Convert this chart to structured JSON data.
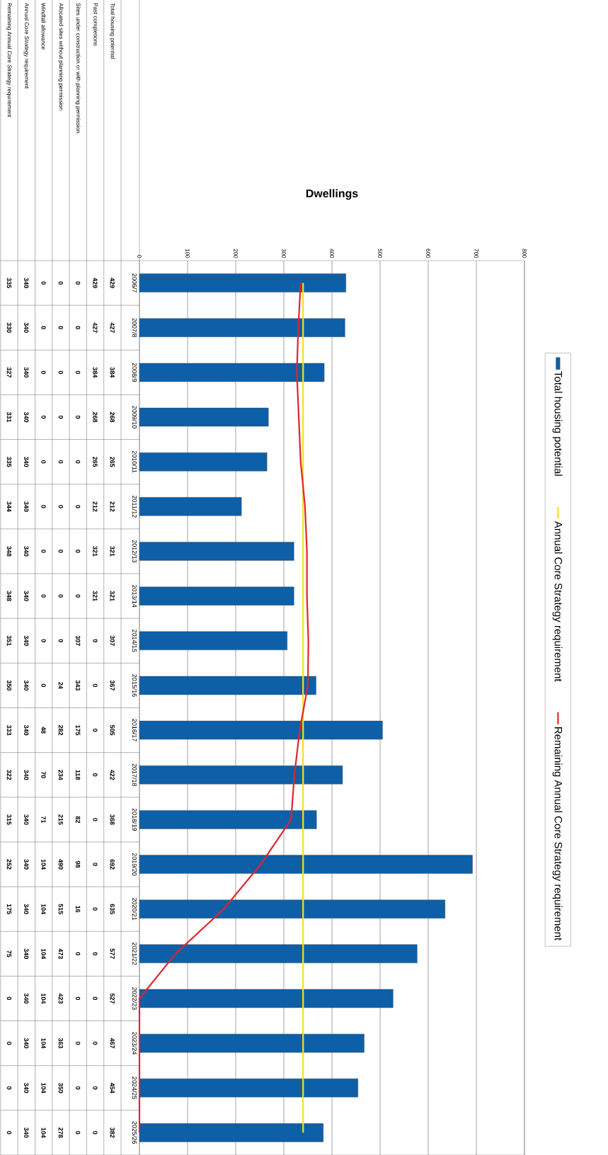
{
  "chart_data": {
    "type": "bar",
    "orientation": "horizontal",
    "xlabel": "Dwellings",
    "categories": [
      "2006/7",
      "2007/8",
      "2008/9",
      "2009/10",
      "2010/11",
      "2011/12",
      "2012/13",
      "2013/14",
      "2014/15",
      "2015/16",
      "2016/17",
      "2017/18",
      "2018/19",
      "2019/20",
      "2020/21",
      "2021/22",
      "2022/23",
      "2023/24",
      "2024/25",
      "2025/26"
    ],
    "series": [
      {
        "name": "Total housing potential",
        "color": "#0d5fa8",
        "values": [
          429,
          427,
          384,
          268,
          265,
          212,
          321,
          321,
          307,
          367,
          505,
          422,
          368,
          692,
          635,
          577,
          527,
          467,
          454,
          382
        ]
      },
      {
        "name": "Annual Core Strategy requirement",
        "type": "line",
        "color": "#f2e31a",
        "values": [
          340,
          340,
          340,
          340,
          340,
          340,
          340,
          340,
          340,
          340,
          340,
          340,
          340,
          340,
          340,
          340,
          340,
          340,
          340,
          340
        ]
      },
      {
        "name": "Remaining Annual Core Strategy requirement",
        "type": "line",
        "color": "#e3242b",
        "values": [
          335,
          330,
          327,
          331,
          335,
          344,
          348,
          348,
          351,
          350,
          333,
          322,
          315,
          252,
          175,
          75,
          0,
          0,
          0,
          0
        ]
      }
    ],
    "annotations": [
      "Past completions",
      "429",
      "427",
      "384",
      "268",
      "265",
      "212",
      "321",
      "321",
      "0",
      "0",
      "0",
      "0",
      "0",
      "0",
      "0",
      "0",
      "0",
      "0",
      "0",
      "0",
      "Sites under construction or with planning permission",
      "0",
      "0",
      "0",
      "0",
      "0",
      "0",
      "0",
      "0",
      "307",
      "343",
      "175",
      "118",
      "82",
      "98",
      "16",
      "0",
      "0",
      "0",
      "0",
      "0",
      "Allocated sites without planning permission",
      "0",
      "0",
      "0",
      "0",
      "0",
      "0",
      "0",
      "0",
      "0",
      "24",
      "282",
      "234",
      "215",
      "490",
      "515",
      "473",
      "423",
      "363",
      "350",
      "278",
      "Windfall allowance",
      "0",
      "0",
      "0",
      "0",
      "0",
      "0",
      "0",
      "0",
      "0",
      "0",
      "48",
      "70",
      "71",
      "104",
      "104",
      "104",
      "104",
      "104",
      "104",
      "104"
    ],
    "xlim": [
      0,
      800
    ],
    "xticks": [
      0,
      100,
      200,
      300,
      400,
      500,
      600,
      700,
      800
    ],
    "grid": "x",
    "legend": "right",
    "data_labels": true,
    "marker": "none",
    "line_style": "solid"
  }
}
